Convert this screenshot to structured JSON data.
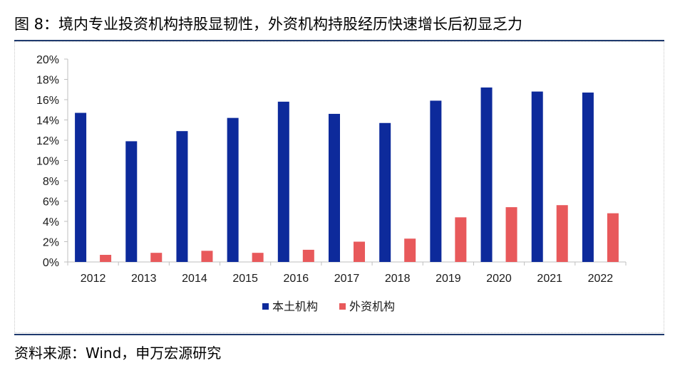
{
  "title": "图 8：境内专业投资机构持股显韧性，外资机构持股经历快速增长后初显乏力",
  "source": "资料来源：Wind，申万宏源研究",
  "colors": {
    "series1": "#0d2a9b",
    "series2": "#e8595b",
    "rule": "#1f3a6e",
    "axis": "#bfbfbf"
  },
  "chart_data": {
    "type": "bar",
    "categories": [
      "2012",
      "2013",
      "2014",
      "2015",
      "2016",
      "2017",
      "2018",
      "2019",
      "2020",
      "2021",
      "2022"
    ],
    "series": [
      {
        "name": "本土机构",
        "values": [
          14.7,
          11.9,
          12.9,
          14.2,
          15.8,
          14.6,
          13.7,
          15.9,
          17.2,
          16.8,
          16.7
        ]
      },
      {
        "name": "外资机构",
        "values": [
          0.7,
          0.9,
          1.1,
          0.9,
          1.2,
          2.0,
          2.3,
          4.4,
          5.4,
          5.6,
          4.8
        ]
      }
    ],
    "yticks": [
      "0%",
      "2%",
      "4%",
      "6%",
      "8%",
      "10%",
      "12%",
      "14%",
      "16%",
      "18%",
      "20%"
    ],
    "ylim": [
      0,
      20
    ],
    "title": "",
    "xlabel": "",
    "ylabel": "",
    "legend": "bottom-center",
    "grid": false
  }
}
